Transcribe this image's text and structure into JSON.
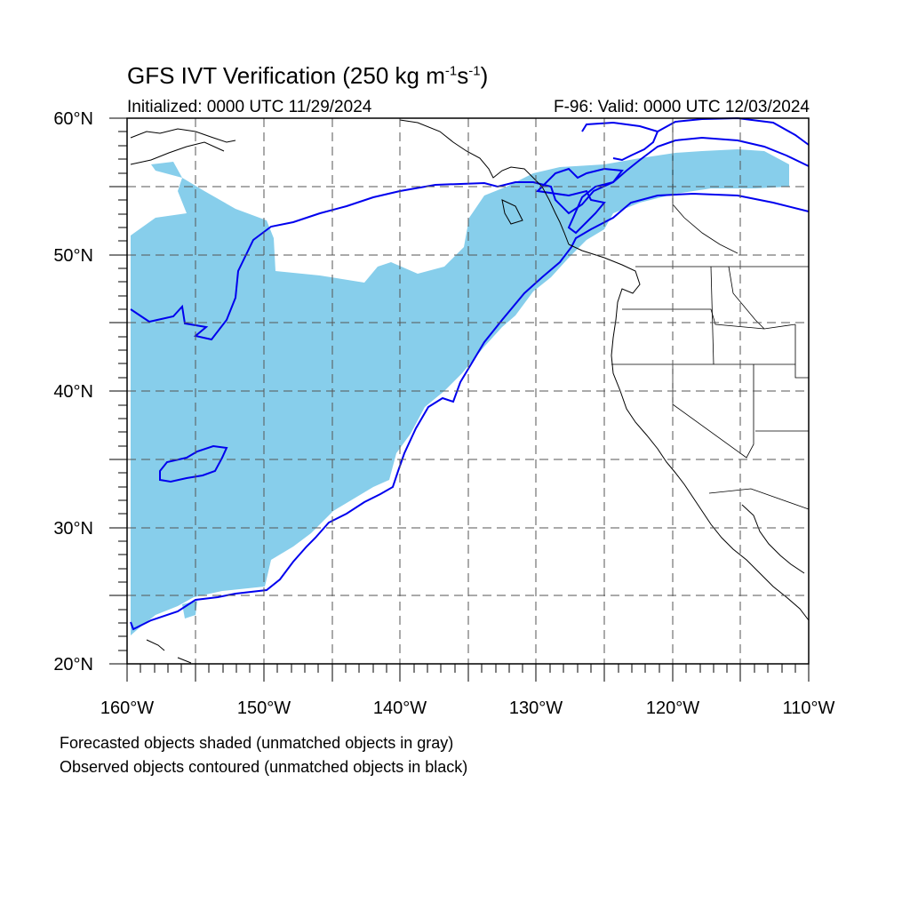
{
  "title_main": "GFS IVT Verification (250 kg m",
  "title_exp1": "-1",
  "title_mid": "s",
  "title_exp2": "-1",
  "title_end": ")",
  "subtitle_left": "Initialized: 0000 UTC 11/29/2024",
  "subtitle_right": "F-96: Valid: 0000 UTC 12/03/2024",
  "latitude_labels": [
    "60°N",
    "50°N",
    "40°N",
    "30°N",
    "20°N"
  ],
  "longitude_labels": [
    "160°W",
    "150°W",
    "140°W",
    "130°W",
    "120°W",
    "110°W"
  ],
  "footnote_1": "Forecasted objects shaded (unmatched objects in gray)",
  "footnote_2": "Observed objects contoured (unmatched objects in black)",
  "colors": {
    "forecast_shading": "#87ceeb",
    "observed_contour": "#0000ee",
    "coastline": "#000000",
    "gridline": "#555555"
  },
  "map_extent": {
    "lon_min": -160,
    "lon_max": -110,
    "lat_min": 20,
    "lat_max": 60
  }
}
